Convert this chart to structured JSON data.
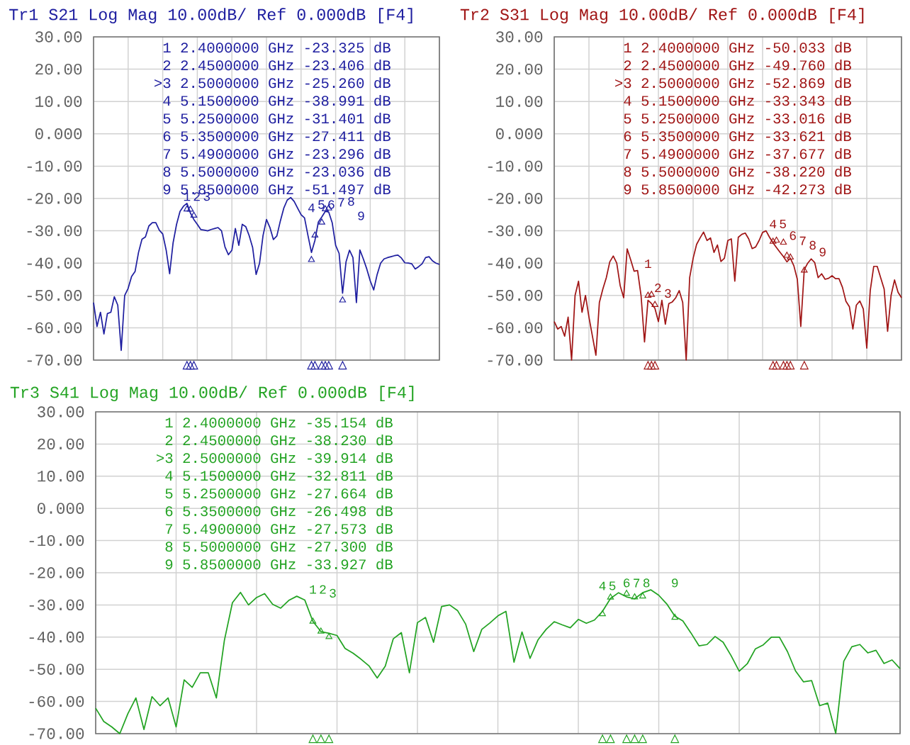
{
  "chart_data": [
    {
      "type": "line",
      "title": "Tr1 S21 Log Mag 10.00dB/ Ref 0.000dB [F4]",
      "categories": [
        null,
        null,
        null,
        null,
        null,
        null,
        null,
        null,
        null,
        null,
        null,
        null,
        null,
        null,
        null,
        null,
        null,
        null,
        null,
        null,
        null,
        null,
        null,
        null,
        null,
        null,
        null,
        null,
        null,
        null,
        null,
        null,
        null,
        null,
        null,
        null,
        null,
        null,
        null,
        null,
        null,
        null,
        null,
        null,
        null,
        null,
        null,
        null,
        null,
        null,
        null,
        null,
        null,
        null,
        null,
        null,
        null,
        null,
        null,
        null,
        null,
        null,
        null,
        null,
        null,
        null,
        null,
        null,
        null,
        null,
        null,
        null,
        null,
        null,
        null,
        null,
        null,
        null,
        null,
        null,
        null,
        null,
        null,
        null,
        null,
        null,
        null,
        null,
        null,
        null,
        null,
        null,
        null,
        null,
        null,
        null,
        null,
        null,
        null,
        null,
        null
      ],
      "series": [
        {
          "color": "#1f1fa0",
          "values": [
            -52.2,
            -59.6,
            -55.2,
            -61.9,
            -55.6,
            -55.2,
            -50.4,
            -53,
            -67,
            -50,
            -47.8,
            -44.1,
            -42.6,
            -36.7,
            -32.6,
            -31.9,
            -28.5,
            -27.5,
            -27.5,
            -29.8,
            -31,
            -36,
            -43.3,
            -33.7,
            -28,
            -24,
            -22.4,
            -21.5,
            -24.5,
            -26.5,
            -28,
            -29.6,
            -29.8,
            -30,
            -29.6,
            -29.3,
            -29,
            -30,
            -35,
            -37.4,
            -36,
            -29.3,
            -34.5,
            -28,
            -28.7,
            -31.5,
            -35.2,
            -43.5,
            -40,
            -31.5,
            -26.5,
            -29,
            -32.7,
            -31.6,
            -27,
            -23,
            -20.5,
            -19.7,
            -20.9,
            -23,
            -25,
            -26,
            -31.5,
            -36.7,
            -33,
            -27.3,
            -25.7,
            -24,
            -24.2,
            -27.5,
            -34.5,
            -37,
            -49.3,
            -39.6,
            -36,
            -38.3,
            -52.2,
            -35.9,
            -38.7,
            -41.8,
            -45.5,
            -48.3,
            -43.5,
            -40,
            -38.7,
            -38.3,
            -38,
            -37.7,
            -37.5,
            -38.4,
            -39.9,
            -40,
            -40.2,
            -41.8,
            -41.1,
            -40.2,
            -38.3,
            -38,
            -39.3,
            -40,
            -40.4
          ]
        },
        {
          "type": "scatter",
          "marker": "triangle",
          "color": "#1f1fa0",
          "values": [
            null,
            null,
            null,
            null,
            null,
            null,
            null,
            null,
            null,
            null,
            null,
            null,
            null,
            null,
            null,
            null,
            null,
            null,
            null,
            null,
            null,
            null,
            null,
            null,
            null,
            null,
            null,
            -23.325,
            -23.406,
            -25.26,
            null,
            null,
            null,
            null,
            null,
            null,
            null,
            null,
            null,
            null,
            null,
            null,
            null,
            null,
            null,
            null,
            null,
            null,
            null,
            null,
            null,
            null,
            null,
            null,
            null,
            null,
            null,
            null,
            null,
            null,
            null,
            null,
            null,
            -38.991,
            -31.401,
            null,
            -27.411,
            -23.296,
            -23.036,
            null,
            null,
            null,
            -51.497,
            null,
            null,
            null,
            null,
            null,
            null,
            null,
            null,
            null,
            null,
            null,
            null,
            null,
            null,
            null,
            null,
            null,
            null,
            null,
            null,
            null,
            null,
            null,
            null,
            null,
            null,
            null,
            null
          ]
        }
      ],
      "ylim": [
        -70,
        30
      ],
      "yticks": [
        {
          "value": 30,
          "label": "30.00"
        },
        {
          "value": 20,
          "label": "20.00"
        },
        {
          "value": 10,
          "label": "10.00"
        },
        {
          "value": 0,
          "label": "0.000"
        },
        {
          "value": -10,
          "label": "-10.00"
        },
        {
          "value": -20,
          "label": "-20.00"
        },
        {
          "value": -30,
          "label": "-30.00"
        },
        {
          "value": -40,
          "label": "-40.00"
        },
        {
          "value": -50,
          "label": "-50.00"
        },
        {
          "value": -60,
          "label": "-60.00"
        },
        {
          "value": -70,
          "label": "-70.00"
        }
      ],
      "grid": true,
      "annotations": [
        "1 2.4000000 GHz -23.325 dB",
        "2 2.4500000 GHz -23.406 dB",
        ">3 2.5000000 GHz -25.260 dB",
        "4 5.1500000 GHz -38.991 dB",
        "5 5.2500000 GHz -31.401 dB",
        "6 5.3500000 GHz -27.411 dB",
        "7 5.4900000 GHz -23.296 dB",
        "8 5.5000000 GHz -23.036 dB",
        "9 5.8500000 GHz -51.497 dB",
        "1",
        "2",
        "3",
        "4",
        "5",
        "6",
        "7",
        "8",
        "9"
      ]
    },
    {
      "type": "line",
      "title": "Tr2 S31 Log Mag 10.00dB/ Ref 0.000dB [F4]",
      "categories": [
        null,
        null,
        null,
        null,
        null,
        null,
        null,
        null,
        null,
        null,
        null,
        null,
        null,
        null,
        null,
        null,
        null,
        null,
        null,
        null,
        null,
        null,
        null,
        null,
        null,
        null,
        null,
        null,
        null,
        null,
        null,
        null,
        null,
        null,
        null,
        null,
        null,
        null,
        null,
        null,
        null,
        null,
        null,
        null,
        null,
        null,
        null,
        null,
        null,
        null,
        null,
        null,
        null,
        null,
        null,
        null,
        null,
        null,
        null,
        null,
        null,
        null,
        null,
        null,
        null,
        null,
        null,
        null,
        null,
        null,
        null,
        null,
        null,
        null,
        null,
        null,
        null,
        null,
        null,
        null,
        null,
        null,
        null,
        null,
        null,
        null,
        null,
        null,
        null,
        null,
        null,
        null,
        null,
        null,
        null,
        null,
        null,
        null,
        null,
        null,
        null
      ],
      "series": [
        {
          "color": "#a01515",
          "values": [
            -58.1,
            -60.4,
            -59.6,
            -62.6,
            -56.7,
            -70,
            -50,
            -45.6,
            -55.2,
            -50,
            -56.7,
            -62.6,
            -68.5,
            -52.2,
            -48,
            -44.5,
            -39.6,
            -37.8,
            -40,
            -47,
            -50.7,
            -35.6,
            -38.9,
            -42.5,
            -42.3,
            -50,
            -64.4,
            -51.5,
            -52.5,
            -54,
            -58.1,
            -51.5,
            -58.9,
            -52.5,
            -52,
            -50.7,
            -48.5,
            -52.2,
            -70,
            -44.5,
            -38.5,
            -34.2,
            -32.2,
            -30.4,
            -33,
            -32.2,
            -36.7,
            -34.4,
            -39.5,
            -38.5,
            -33,
            -32.5,
            -45.6,
            -32,
            -31.1,
            -30.7,
            -32.5,
            -35.5,
            -35,
            -33,
            -30.5,
            -30,
            -32,
            -33.7,
            -35.2,
            -36.6,
            -38,
            -39.6,
            -38.5,
            -40.8,
            -45,
            -59.6,
            -42,
            -40,
            -38.7,
            -39.8,
            -44.5,
            -43.3,
            -45,
            -44.7,
            -43.9,
            -44.8,
            -44.8,
            -47.5,
            -51.8,
            -53.5,
            -60.4,
            -53,
            -51.7,
            -54.2,
            -66.3,
            -48.5,
            -41,
            -41,
            -44.5,
            -48,
            -61.1,
            -50,
            -45.2,
            -49,
            -50.7
          ]
        },
        {
          "type": "scatter",
          "marker": "triangle",
          "color": "#a01515",
          "values": [
            null,
            null,
            null,
            null,
            null,
            null,
            null,
            null,
            null,
            null,
            null,
            null,
            null,
            null,
            null,
            null,
            null,
            null,
            null,
            null,
            null,
            null,
            null,
            null,
            null,
            null,
            null,
            -50.033,
            -49.76,
            -52.869,
            null,
            null,
            null,
            null,
            null,
            null,
            null,
            null,
            null,
            null,
            null,
            null,
            null,
            null,
            null,
            null,
            null,
            null,
            null,
            null,
            null,
            null,
            null,
            null,
            null,
            null,
            null,
            null,
            null,
            null,
            null,
            null,
            null,
            -33.343,
            -33.016,
            null,
            -33.621,
            -37.677,
            -38.22,
            null,
            null,
            null,
            -42.273,
            null,
            null,
            null,
            null,
            null,
            null,
            null,
            null,
            null,
            null,
            null,
            null,
            null,
            null,
            null,
            null,
            null,
            null,
            null,
            null,
            null,
            null,
            null,
            null,
            null,
            null,
            null,
            null
          ]
        }
      ],
      "ylim": [
        -70,
        30
      ],
      "yticks": [
        {
          "value": 30,
          "label": "30.00"
        },
        {
          "value": 20,
          "label": "20.00"
        },
        {
          "value": 10,
          "label": "10.00"
        },
        {
          "value": 0,
          "label": "0.000"
        },
        {
          "value": -10,
          "label": "-10.00"
        },
        {
          "value": -20,
          "label": "-20.00"
        },
        {
          "value": -30,
          "label": "-30.00"
        },
        {
          "value": -40,
          "label": "-40.00"
        },
        {
          "value": -50,
          "label": "-50.00"
        },
        {
          "value": -60,
          "label": "-60.00"
        },
        {
          "value": -70,
          "label": "-70.00"
        }
      ],
      "grid": true,
      "annotations": [
        "1 2.4000000 GHz -50.033 dB",
        "2 2.4500000 GHz -49.760 dB",
        ">3 2.5000000 GHz -52.869 dB",
        "4 5.1500000 GHz -33.343 dB",
        "5 5.2500000 GHz -33.016 dB",
        "6 5.3500000 GHz -33.621 dB",
        "7 5.4900000 GHz -37.677 dB",
        "8 5.5000000 GHz -38.220 dB",
        "9 5.8500000 GHz -42.273 dB",
        "1",
        "2",
        "3",
        "4",
        "5",
        "6",
        "7",
        "8",
        "9"
      ]
    },
    {
      "type": "line",
      "title": "Tr3 S41 Log Mag 10.00dB/ Ref 0.000dB [F4]",
      "categories": [
        null,
        null,
        null,
        null,
        null,
        null,
        null,
        null,
        null,
        null,
        null,
        null,
        null,
        null,
        null,
        null,
        null,
        null,
        null,
        null,
        null,
        null,
        null,
        null,
        null,
        null,
        null,
        null,
        null,
        null,
        null,
        null,
        null,
        null,
        null,
        null,
        null,
        null,
        null,
        null,
        null,
        null,
        null,
        null,
        null,
        null,
        null,
        null,
        null,
        null,
        null,
        null,
        null,
        null,
        null,
        null,
        null,
        null,
        null,
        null,
        null,
        null,
        null,
        null,
        null,
        null,
        null,
        null,
        null,
        null,
        null,
        null,
        null,
        null,
        null,
        null,
        null,
        null,
        null,
        null,
        null,
        null,
        null,
        null,
        null,
        null,
        null,
        null,
        null,
        null,
        null,
        null,
        null,
        null,
        null,
        null,
        null,
        null,
        null,
        null,
        null
      ],
      "series": [
        {
          "color": "#22a322",
          "values": [
            -62.1,
            -66.2,
            -67.9,
            -70,
            -63.8,
            -58.9,
            -68.7,
            -58.5,
            -61.3,
            -58.9,
            -67.9,
            -53.3,
            -55.6,
            -51.1,
            -51.1,
            -58.9,
            -41,
            -29.3,
            -26.1,
            -30,
            -27.7,
            -26.5,
            -29.8,
            -31,
            -28.6,
            -27.3,
            -28.5,
            -35.1,
            -38.3,
            -38.8,
            -39.5,
            -43.5,
            -45,
            -46.9,
            -49,
            -52.7,
            -49,
            -40.5,
            -38.6,
            -51.1,
            -35.5,
            -33.9,
            -41.6,
            -30.5,
            -30,
            -31.8,
            -36,
            -44.5,
            -37.6,
            -35.6,
            -33.4,
            -32,
            -47.8,
            -38.4,
            -46.6,
            -40.8,
            -37.6,
            -35.2,
            -36.2,
            -37.1,
            -34.5,
            -35.7,
            -34.7,
            -32,
            -28,
            -26.2,
            -27.5,
            -28.1,
            -26.2,
            -25.3,
            -27,
            -29.7,
            -33.5,
            -35,
            -38.7,
            -42.7,
            -42.3,
            -39.8,
            -41.6,
            -45.8,
            -50.6,
            -48.3,
            -43.7,
            -42.4,
            -40,
            -40,
            -44.5,
            -50.5,
            -53.9,
            -53.5,
            -61.3,
            -60.5,
            -69.9,
            -47.5,
            -43,
            -42.3,
            -44.9,
            -44.1,
            -48.2,
            -47.1,
            -49.8
          ]
        },
        {
          "type": "scatter",
          "marker": "triangle",
          "color": "#22a322",
          "values": [
            null,
            null,
            null,
            null,
            null,
            null,
            null,
            null,
            null,
            null,
            null,
            null,
            null,
            null,
            null,
            null,
            null,
            null,
            null,
            null,
            null,
            null,
            null,
            null,
            null,
            null,
            null,
            -35.154,
            -38.23,
            -39.914,
            null,
            null,
            null,
            null,
            null,
            null,
            null,
            null,
            null,
            null,
            null,
            null,
            null,
            null,
            null,
            null,
            null,
            null,
            null,
            null,
            null,
            null,
            null,
            null,
            null,
            null,
            null,
            null,
            null,
            null,
            null,
            null,
            null,
            -32.811,
            -27.664,
            null,
            -26.498,
            -27.573,
            -27.3,
            null,
            null,
            null,
            -33.927,
            null,
            null,
            null,
            null,
            null,
            null,
            null,
            null,
            null,
            null,
            null,
            null,
            null,
            null,
            null,
            null,
            null,
            null,
            null,
            null,
            null,
            null,
            null,
            null,
            null,
            null,
            null,
            null
          ]
        }
      ],
      "ylim": [
        -70,
        30
      ],
      "yticks": [
        {
          "value": 30,
          "label": "30.00"
        },
        {
          "value": 20,
          "label": "20.00"
        },
        {
          "value": 10,
          "label": "10.00"
        },
        {
          "value": 0,
          "label": "0.000"
        },
        {
          "value": -10,
          "label": "-10.00"
        },
        {
          "value": -20,
          "label": "-20.00"
        },
        {
          "value": -30,
          "label": "-30.00"
        },
        {
          "value": -40,
          "label": "-40.00"
        },
        {
          "value": -50,
          "label": "-50.00"
        },
        {
          "value": -60,
          "label": "-60.00"
        },
        {
          "value": -70,
          "label": "-70.00"
        }
      ],
      "grid": true,
      "annotations": [
        "1 2.4000000 GHz -35.154 dB",
        "2 2.4500000 GHz -38.230 dB",
        ">3 2.5000000 GHz -39.914 dB",
        "4 5.1500000 GHz -32.811 dB",
        "5 5.2500000 GHz -27.664 dB",
        "6 5.3500000 GHz -26.498 dB",
        "7 5.4900000 GHz -27.573 dB",
        "8 5.5000000 GHz -27.300 dB",
        "9 5.8500000 GHz -33.927 dB",
        "1",
        "2",
        "3",
        "4",
        "5",
        "6",
        "7",
        "8",
        "9"
      ]
    }
  ]
}
